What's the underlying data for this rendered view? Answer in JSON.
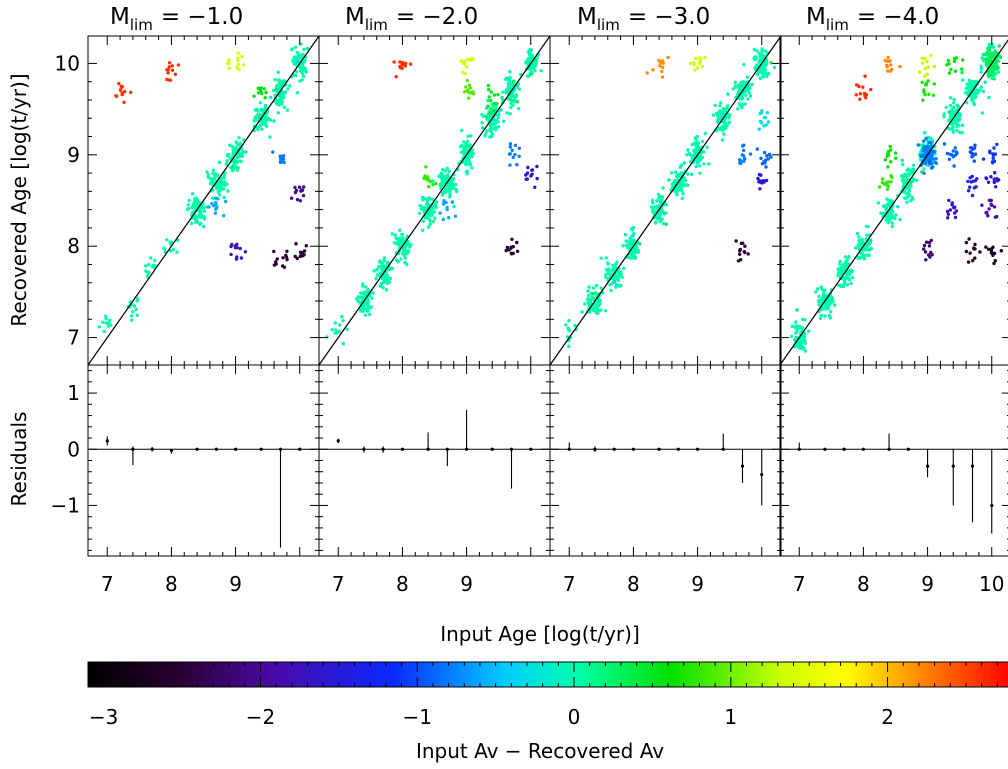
{
  "figure": {
    "xlabel": "Input Age [log(t/yr)]",
    "ylabel_top": "Recovered Age [log(t/yr)]",
    "ylabel_bottom": "Residuals",
    "colorbar_label": "Input Av − Recovered Av"
  },
  "panels": [
    {
      "title_prefix": "M",
      "title_sub": "lim",
      "title_value": "= −1.0"
    },
    {
      "title_prefix": "M",
      "title_sub": "lim",
      "title_value": "= −2.0"
    },
    {
      "title_prefix": "M",
      "title_sub": "lim",
      "title_value": "= −3.0"
    },
    {
      "title_prefix": "M",
      "title_sub": "lim",
      "title_value": "= −4.0"
    }
  ],
  "chart_data": [
    {
      "type": "scatter",
      "panel": "M_lim = -1.0",
      "xlabel": "Input Age [log(t/yr)]",
      "ylabel": "Recovered Age [log(t/yr)]",
      "xlim": [
        6.7,
        10.3
      ],
      "ylim": [
        6.7,
        10.3
      ],
      "x_ticks": [
        7,
        8,
        9
      ],
      "y_ticks": [
        7,
        8,
        9,
        10
      ],
      "one_to_one_line": true,
      "color_encodes": "Input Av − Recovered Av",
      "clusters": [
        {
          "x": 7.0,
          "y": 7.15,
          "color_value": 0.0
        },
        {
          "x": 7.4,
          "y": 7.35,
          "color_value": 0.0
        },
        {
          "x": 7.7,
          "y": 7.75,
          "color_value": 0.0
        },
        {
          "x": 8.0,
          "y": 7.98,
          "color_value": 0.0
        },
        {
          "x": 8.4,
          "y": 8.4,
          "color_value": 0.0
        },
        {
          "x": 8.7,
          "y": 8.7,
          "color_value": 0.0
        },
        {
          "x": 9.0,
          "y": 9.0,
          "color_value": 0.0
        },
        {
          "x": 9.4,
          "y": 9.4,
          "color_value": 0.0
        },
        {
          "x": 9.7,
          "y": 9.7,
          "color_value": 0.0
        },
        {
          "x": 10.0,
          "y": 10.0,
          "color_value": 0.0
        },
        {
          "x": 8.7,
          "y": 8.4,
          "color_value": -0.6
        },
        {
          "x": 9.7,
          "y": 9.0,
          "color_value": -0.8
        },
        {
          "x": 9.0,
          "y": 7.95,
          "color_value": -1.8
        },
        {
          "x": 9.7,
          "y": 7.85,
          "color_value": -2.5
        },
        {
          "x": 10.0,
          "y": 7.95,
          "color_value": -2.6
        },
        {
          "x": 10.0,
          "y": 8.6,
          "color_value": -2.0
        },
        {
          "x": 7.2,
          "y": 9.7,
          "color_value": 2.6
        },
        {
          "x": 8.0,
          "y": 9.9,
          "color_value": 2.6
        },
        {
          "x": 9.0,
          "y": 10.0,
          "color_value": 1.4
        },
        {
          "x": 9.4,
          "y": 9.7,
          "color_value": 0.6
        }
      ]
    },
    {
      "type": "scatter",
      "panel": "M_lim = -2.0",
      "xlabel": "Input Age [log(t/yr)]",
      "ylabel": "Recovered Age [log(t/yr)]",
      "xlim": [
        6.7,
        10.3
      ],
      "ylim": [
        6.7,
        10.3
      ],
      "x_ticks": [
        7,
        8,
        9
      ],
      "y_ticks": [
        7,
        8,
        9,
        10
      ],
      "one_to_one_line": true,
      "color_encodes": "Input Av − Recovered Av",
      "clusters": [
        {
          "x": 7.0,
          "y": 7.1,
          "color_value": 0.0
        },
        {
          "x": 7.4,
          "y": 7.4,
          "color_value": 0.0
        },
        {
          "x": 7.7,
          "y": 7.7,
          "color_value": 0.0
        },
        {
          "x": 8.0,
          "y": 8.0,
          "color_value": 0.0
        },
        {
          "x": 8.4,
          "y": 8.4,
          "color_value": 0.0
        },
        {
          "x": 8.7,
          "y": 8.7,
          "color_value": 0.0
        },
        {
          "x": 9.0,
          "y": 9.0,
          "color_value": 0.0
        },
        {
          "x": 9.4,
          "y": 9.4,
          "color_value": 0.0
        },
        {
          "x": 9.7,
          "y": 9.7,
          "color_value": 0.0
        },
        {
          "x": 10.0,
          "y": 10.0,
          "color_value": 0.0
        },
        {
          "x": 8.4,
          "y": 8.7,
          "color_value": 0.8
        },
        {
          "x": 8.7,
          "y": 8.4,
          "color_value": -0.6
        },
        {
          "x": 9.0,
          "y": 9.7,
          "color_value": 0.9
        },
        {
          "x": 9.4,
          "y": 9.6,
          "color_value": 0.5
        },
        {
          "x": 9.7,
          "y": 9.0,
          "color_value": -0.8
        },
        {
          "x": 10.0,
          "y": 8.8,
          "color_value": -1.6
        },
        {
          "x": 9.7,
          "y": 7.95,
          "color_value": -2.5
        },
        {
          "x": 9.0,
          "y": 10.0,
          "color_value": 1.4
        },
        {
          "x": 8.0,
          "y": 10.0,
          "color_value": 2.6
        }
      ]
    },
    {
      "type": "scatter",
      "panel": "M_lim = -3.0",
      "xlabel": "Input Age [log(t/yr)]",
      "ylabel": "Recovered Age [log(t/yr)]",
      "xlim": [
        6.7,
        10.3
      ],
      "ylim": [
        6.7,
        10.3
      ],
      "x_ticks": [
        7,
        8,
        9
      ],
      "y_ticks": [
        7,
        8,
        9,
        10
      ],
      "one_to_one_line": true,
      "color_encodes": "Input Av − Recovered Av",
      "clusters": [
        {
          "x": 7.0,
          "y": 7.05,
          "color_value": 0.0
        },
        {
          "x": 7.4,
          "y": 7.4,
          "color_value": 0.0
        },
        {
          "x": 7.7,
          "y": 7.7,
          "color_value": 0.0
        },
        {
          "x": 8.0,
          "y": 8.0,
          "color_value": 0.0
        },
        {
          "x": 8.4,
          "y": 8.4,
          "color_value": 0.0
        },
        {
          "x": 8.7,
          "y": 8.7,
          "color_value": 0.0
        },
        {
          "x": 9.0,
          "y": 9.0,
          "color_value": 0.0
        },
        {
          "x": 9.4,
          "y": 9.4,
          "color_value": 0.0
        },
        {
          "x": 9.7,
          "y": 9.7,
          "color_value": 0.0
        },
        {
          "x": 10.0,
          "y": 10.0,
          "color_value": 0.0
        },
        {
          "x": 9.7,
          "y": 9.0,
          "color_value": -0.8
        },
        {
          "x": 10.0,
          "y": 9.0,
          "color_value": -0.9
        },
        {
          "x": 10.0,
          "y": 8.7,
          "color_value": -1.5
        },
        {
          "x": 9.7,
          "y": 7.95,
          "color_value": -2.5
        },
        {
          "x": 10.0,
          "y": 9.4,
          "color_value": -0.3
        },
        {
          "x": 9.0,
          "y": 10.0,
          "color_value": 1.4
        },
        {
          "x": 8.4,
          "y": 10.0,
          "color_value": 2.2
        }
      ]
    },
    {
      "type": "scatter",
      "panel": "M_lim = -4.0",
      "xlabel": "Input Age [log(t/yr)]",
      "ylabel": "Recovered Age [log(t/yr)]",
      "xlim": [
        6.7,
        10.3
      ],
      "ylim": [
        6.7,
        10.3
      ],
      "x_ticks": [
        7,
        8,
        9,
        10
      ],
      "y_ticks": [
        7,
        8,
        9,
        10
      ],
      "one_to_one_line": true,
      "color_encodes": "Input Av − Recovered Av",
      "clusters": [
        {
          "x": 7.0,
          "y": 7.0,
          "color_value": 0.0
        },
        {
          "x": 7.4,
          "y": 7.4,
          "color_value": 0.0
        },
        {
          "x": 7.7,
          "y": 7.7,
          "color_value": 0.0
        },
        {
          "x": 8.0,
          "y": 8.0,
          "color_value": 0.0
        },
        {
          "x": 8.4,
          "y": 8.4,
          "color_value": 0.0
        },
        {
          "x": 8.7,
          "y": 8.7,
          "color_value": 0.0
        },
        {
          "x": 9.0,
          "y": 9.0,
          "color_value": 0.0
        },
        {
          "x": 9.4,
          "y": 9.4,
          "color_value": 0.0
        },
        {
          "x": 9.7,
          "y": 9.7,
          "color_value": 0.0
        },
        {
          "x": 10.0,
          "y": 10.0,
          "color_value": 0.0
        },
        {
          "x": 9.0,
          "y": 9.0,
          "color_value": -0.8
        },
        {
          "x": 9.4,
          "y": 9.0,
          "color_value": -0.9
        },
        {
          "x": 9.7,
          "y": 9.0,
          "color_value": -1.0
        },
        {
          "x": 10.0,
          "y": 9.0,
          "color_value": -1.1
        },
        {
          "x": 9.7,
          "y": 8.7,
          "color_value": -1.4
        },
        {
          "x": 10.0,
          "y": 8.7,
          "color_value": -1.6
        },
        {
          "x": 9.4,
          "y": 8.4,
          "color_value": -1.7
        },
        {
          "x": 10.0,
          "y": 8.4,
          "color_value": -1.9
        },
        {
          "x": 9.0,
          "y": 7.95,
          "color_value": -2.2
        },
        {
          "x": 9.7,
          "y": 7.95,
          "color_value": -2.6
        },
        {
          "x": 10.0,
          "y": 7.95,
          "color_value": -2.7
        },
        {
          "x": 8.4,
          "y": 8.7,
          "color_value": 0.8
        },
        {
          "x": 8.4,
          "y": 9.0,
          "color_value": 0.6
        },
        {
          "x": 9.0,
          "y": 9.7,
          "color_value": 0.7
        },
        {
          "x": 9.4,
          "y": 10.0,
          "color_value": 0.6
        },
        {
          "x": 8.4,
          "y": 10.0,
          "color_value": 2.2
        },
        {
          "x": 9.0,
          "y": 10.0,
          "color_value": 1.3
        },
        {
          "x": 8.0,
          "y": 9.7,
          "color_value": 2.6
        },
        {
          "x": 10.0,
          "y": 10.0,
          "color_value": 0.3
        }
      ]
    },
    {
      "type": "errorbar",
      "panel": "M_lim = -1.0 residuals",
      "ylabel": "Residuals",
      "xlim": [
        6.7,
        10.3
      ],
      "ylim": [
        -1.9,
        1.5
      ],
      "y_ticks": [
        -1,
        0,
        1
      ],
      "x": [
        7.0,
        7.4,
        7.7,
        8.0,
        8.4,
        8.7,
        9.0,
        9.4,
        9.7,
        10.0
      ],
      "y": [
        0.15,
        0.0,
        0.0,
        -0.02,
        0.0,
        0.0,
        0.0,
        0.0,
        0.0,
        0.0
      ],
      "err_low": [
        0.08,
        0.28,
        0.04,
        0.06,
        0.0,
        0.0,
        0.0,
        0.0,
        1.75,
        0.0
      ],
      "err_high": [
        0.08,
        0.05,
        0.04,
        0.02,
        0.0,
        0.0,
        0.0,
        0.0,
        0.0,
        0.0
      ]
    },
    {
      "type": "errorbar",
      "panel": "M_lim = -2.0 residuals",
      "ylabel": "Residuals",
      "xlim": [
        6.7,
        10.3
      ],
      "ylim": [
        -1.9,
        1.5
      ],
      "y_ticks": [
        -1,
        0,
        1
      ],
      "x": [
        7.0,
        7.4,
        7.7,
        8.0,
        8.4,
        8.7,
        9.0,
        9.4,
        9.7,
        10.0
      ],
      "y": [
        0.15,
        0.0,
        0.0,
        0.0,
        0.0,
        0.0,
        0.0,
        0.0,
        0.0,
        0.0
      ],
      "err_low": [
        0.04,
        0.06,
        0.06,
        0.0,
        0.0,
        0.3,
        0.0,
        0.0,
        0.7,
        0.0
      ],
      "err_high": [
        0.04,
        0.05,
        0.05,
        0.0,
        0.3,
        0.0,
        0.7,
        0.0,
        0.0,
        0.0
      ]
    },
    {
      "type": "errorbar",
      "panel": "M_lim = -3.0 residuals",
      "ylabel": "Residuals",
      "xlim": [
        6.7,
        10.3
      ],
      "ylim": [
        -1.9,
        1.5
      ],
      "y_ticks": [
        -1,
        0,
        1
      ],
      "x": [
        7.0,
        7.4,
        7.7,
        8.0,
        8.4,
        8.7,
        9.0,
        9.4,
        9.7,
        10.0
      ],
      "y": [
        0.0,
        0.0,
        0.0,
        0.0,
        0.0,
        0.0,
        0.0,
        0.0,
        -0.3,
        -0.45
      ],
      "err_low": [
        0.0,
        0.05,
        0.0,
        0.0,
        0.0,
        0.0,
        0.0,
        0.0,
        0.3,
        0.55
      ],
      "err_high": [
        0.12,
        0.05,
        0.0,
        0.0,
        0.0,
        0.0,
        0.0,
        0.28,
        0.3,
        0.45
      ]
    },
    {
      "type": "errorbar",
      "panel": "M_lim = -4.0 residuals",
      "ylabel": "Residuals",
      "xlim": [
        6.7,
        10.3
      ],
      "ylim": [
        -1.9,
        1.5
      ],
      "y_ticks": [
        -1,
        0,
        1
      ],
      "x": [
        7.0,
        7.4,
        7.7,
        8.0,
        8.4,
        8.7,
        9.0,
        9.4,
        9.7,
        10.0
      ],
      "y": [
        0.0,
        0.0,
        0.0,
        0.0,
        0.0,
        0.0,
        -0.3,
        -0.3,
        -0.3,
        -1.0
      ],
      "err_low": [
        0.0,
        0.0,
        0.0,
        0.0,
        0.0,
        0.0,
        0.2,
        0.7,
        1.0,
        0.5
      ],
      "err_high": [
        0.12,
        0.0,
        0.0,
        0.0,
        0.28,
        0.0,
        0.3,
        0.3,
        0.3,
        1.0
      ]
    },
    {
      "type": "colorbar",
      "label": "Input Av − Recovered Av",
      "range": [
        -3.1,
        2.8
      ],
      "ticks": [
        -3,
        -2,
        -1,
        0,
        1,
        2
      ],
      "colormap": "rainbow (black → violet → blue → cyan → green → yellow → red)"
    }
  ]
}
